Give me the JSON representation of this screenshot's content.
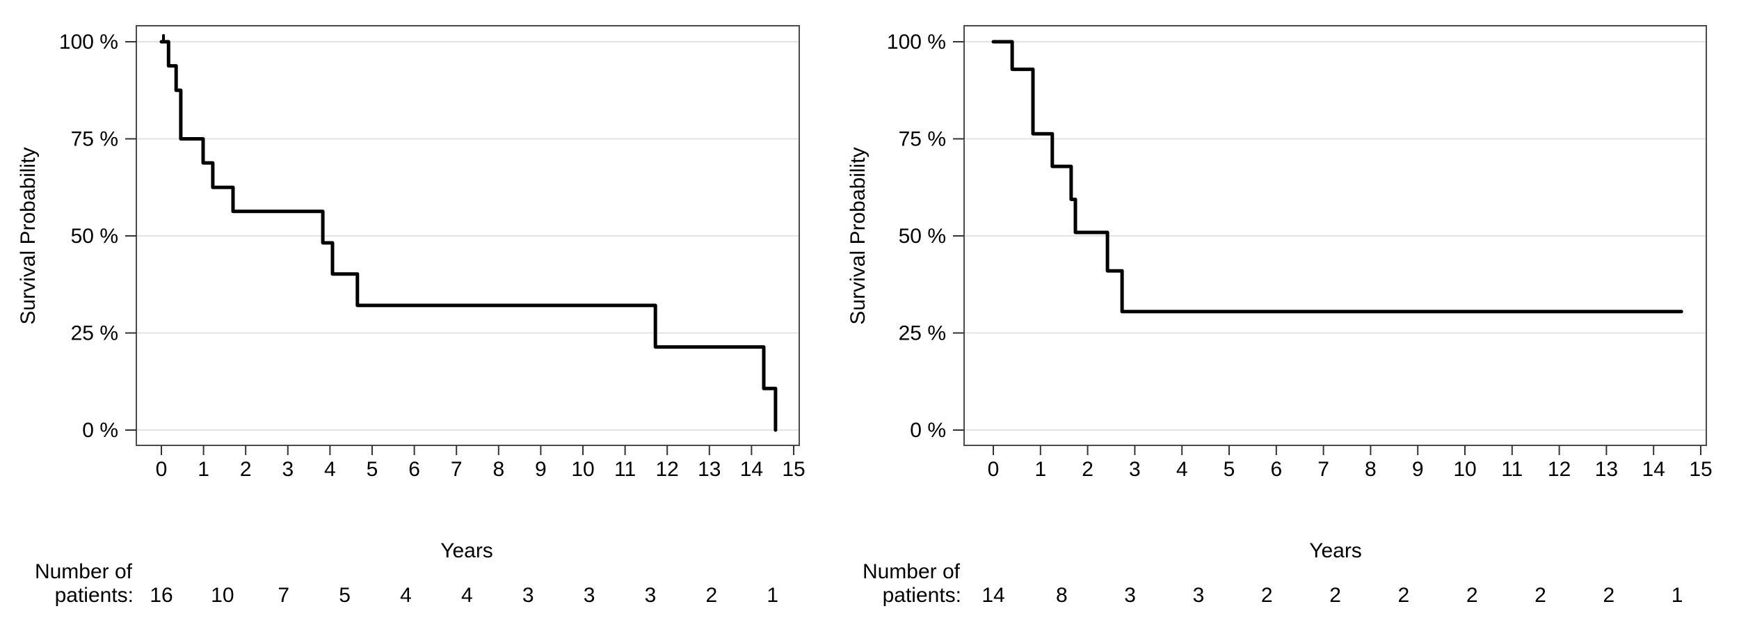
{
  "page": {
    "background": "#ffffff"
  },
  "chart_data": [
    {
      "type": "line",
      "subtype": "step-survival",
      "title": "",
      "xlabel": "Years",
      "ylabel": "Survival Probability",
      "xlim": [
        0,
        15
      ],
      "ylim": [
        0,
        100
      ],
      "grid": "horizontal",
      "xticks": [
        "0",
        "1",
        "2",
        "3",
        "4",
        "5",
        "6",
        "7",
        "8",
        "9",
        "10",
        "11",
        "12",
        "13",
        "14",
        "15"
      ],
      "ytick_values": [
        0,
        25,
        50,
        75,
        100
      ],
      "ytick_labels": [
        "0 %",
        "25 %",
        "50 %",
        "75 %",
        "100 %"
      ],
      "line_color": "#000000",
      "grid_color": "#e3e3e3",
      "series": [
        {
          "name": "survival",
          "event_times": [
            0,
            0.17,
            0.35,
            0.46,
            0.99,
            1.22,
            1.7,
            3.83,
            4.06,
            4.65,
            11.72,
            14.29,
            14.57
          ],
          "survival_pct": [
            100,
            93.8,
            87.5,
            75.0,
            68.8,
            62.5,
            56.3,
            48.2,
            40.2,
            32.1,
            21.4,
            10.7,
            0
          ],
          "end_time": 14.57,
          "censor_times": [
            0.05
          ]
        }
      ],
      "risk_table": {
        "label_line1": "Number of",
        "label_line2": "patients:",
        "times": [
          0,
          1.45,
          2.9,
          4.35,
          5.8,
          7.25,
          8.7,
          10.15,
          11.6,
          13.05,
          14.5
        ],
        "counts": [
          "16",
          "10",
          "7",
          "5",
          "4",
          "4",
          "3",
          "3",
          "3",
          "2",
          "1"
        ]
      }
    },
    {
      "type": "line",
      "subtype": "step-survival",
      "title": "",
      "xlabel": "Years",
      "ylabel": "Survival Probability",
      "xlim": [
        0,
        15
      ],
      "ylim": [
        0,
        100
      ],
      "grid": "horizontal",
      "xticks": [
        "0",
        "1",
        "2",
        "3",
        "4",
        "5",
        "6",
        "7",
        "8",
        "9",
        "10",
        "11",
        "12",
        "13",
        "14",
        "15"
      ],
      "ytick_values": [
        0,
        25,
        50,
        75,
        100
      ],
      "ytick_labels": [
        "0 %",
        "25 %",
        "50 %",
        "75 %",
        "100 %"
      ],
      "line_color": "#000000",
      "grid_color": "#e3e3e3",
      "series": [
        {
          "name": "survival",
          "event_times": [
            0,
            0.4,
            0.84,
            1.25,
            1.65,
            1.74,
            2.42,
            2.73
          ],
          "survival_pct": [
            100,
            92.9,
            76.3,
            67.9,
            59.4,
            50.9,
            41.0,
            30.5
          ],
          "end_time": 14.59,
          "censor_times": []
        }
      ],
      "risk_table": {
        "label_line1": "Number of",
        "label_line2": "patients:",
        "times": [
          0,
          1.45,
          2.9,
          4.35,
          5.8,
          7.25,
          8.7,
          10.15,
          11.6,
          13.05,
          14.5
        ],
        "counts": [
          "14",
          "8",
          "3",
          "3",
          "2",
          "2",
          "2",
          "2",
          "2",
          "2",
          "1"
        ]
      }
    }
  ]
}
